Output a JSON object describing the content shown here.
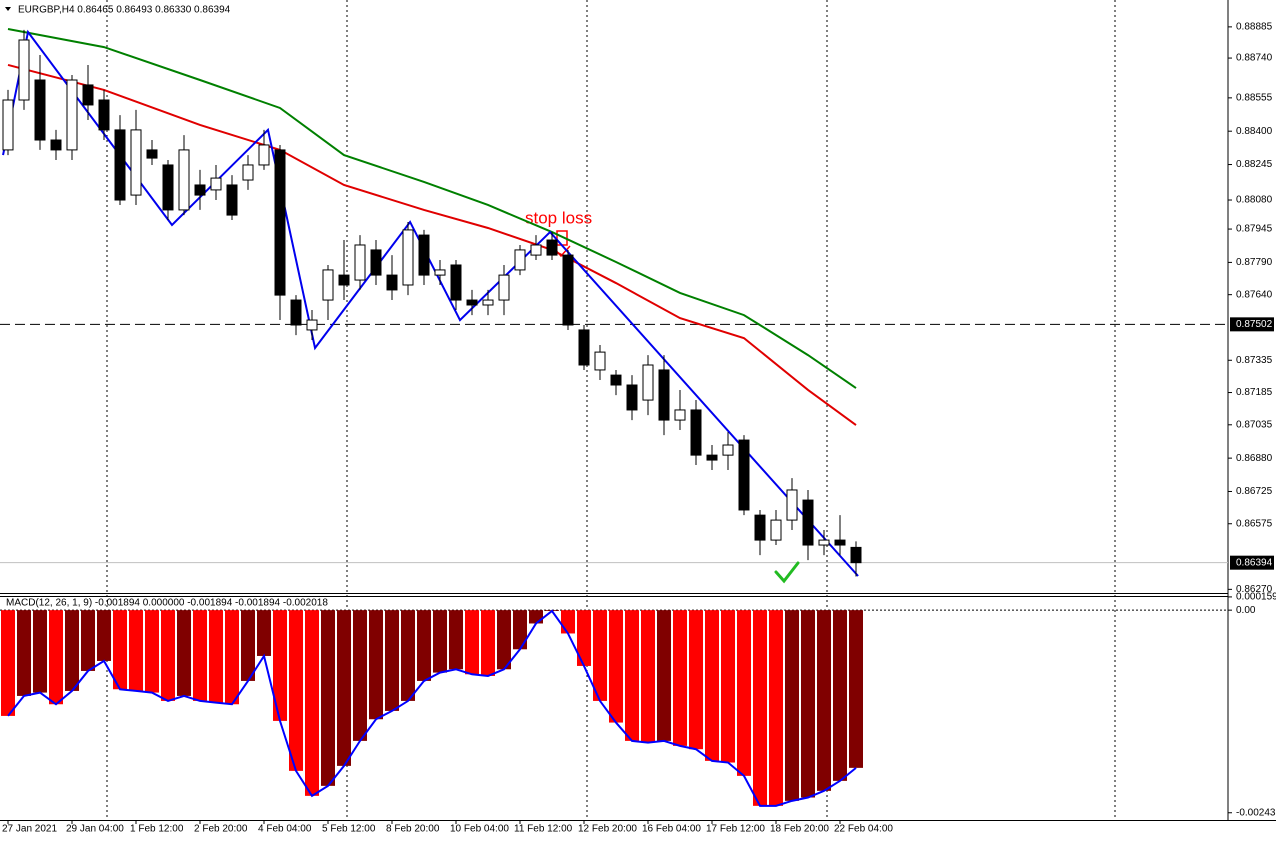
{
  "chart_data": [
    {
      "type": "candlestick",
      "title": "EURGBP,H4  0.86465 0.86493 0.86330 0.86394",
      "annotation": "stop loss",
      "categories": [
        "27 Jan 2021",
        null,
        null,
        null,
        "29 Jan 04:00",
        null,
        null,
        null,
        "1 Feb 12:00",
        null,
        null,
        null,
        "2 Feb 20:00",
        null,
        null,
        null,
        "4 Feb 04:00",
        null,
        null,
        null,
        "5 Feb 12:00",
        null,
        null,
        null,
        "8 Feb 20:00",
        null,
        null,
        null,
        "10 Feb 04:00",
        null,
        null,
        null,
        "11 Feb 12:00",
        null,
        null,
        null,
        "12 Feb 20:00",
        null,
        null,
        null,
        "16 Feb 04:00",
        null,
        null,
        null,
        "17 Feb 12:00",
        null,
        null,
        null,
        "18 Feb 20:00",
        null,
        null,
        null,
        "22 Feb 04:00",
        null
      ],
      "ohlc": [
        [
          0.88313,
          0.88592,
          0.88289,
          0.88545
        ],
        [
          0.88545,
          0.88871,
          0.88499,
          0.88824
        ],
        [
          0.88638,
          0.88754,
          0.88313,
          0.88359
        ],
        [
          0.88359,
          0.88406,
          0.88266,
          0.88313
        ],
        [
          0.88313,
          0.88661,
          0.88266,
          0.88638
        ],
        [
          0.88615,
          0.88708,
          0.88452,
          0.88522
        ],
        [
          0.88545,
          0.88592,
          0.88359,
          0.88406
        ],
        [
          0.88406,
          0.88475,
          0.88057,
          0.8808
        ],
        [
          0.88103,
          0.88499,
          0.88057,
          0.88406
        ],
        [
          0.88313,
          0.88359,
          0.88243,
          0.88275
        ],
        [
          0.88243,
          0.88266,
          0.87987,
          0.88034
        ],
        [
          0.88034,
          0.88382,
          0.8801,
          0.88313
        ],
        [
          0.8815,
          0.8822,
          0.88034,
          0.88103
        ],
        [
          0.88127,
          0.88243,
          0.8808,
          0.88182
        ],
        [
          0.8815,
          0.88196,
          0.87987,
          0.8801
        ],
        [
          0.88173,
          0.88289,
          0.88127,
          0.88243
        ],
        [
          0.88243,
          0.88406,
          0.8822,
          0.88336
        ],
        [
          0.88313,
          0.88336,
          0.87522,
          0.87638
        ],
        [
          0.87615,
          0.87638,
          0.87452,
          0.87499
        ],
        [
          0.87476,
          0.87569,
          0.87429,
          0.87522
        ],
        [
          0.87615,
          0.87778,
          0.87522,
          0.87755
        ],
        [
          0.87731,
          0.87894,
          0.87615,
          0.87685
        ],
        [
          0.87708,
          0.87917,
          0.87662,
          0.87871
        ],
        [
          0.87848,
          0.87894,
          0.87685,
          0.87731
        ],
        [
          0.87731,
          0.87824,
          0.87615,
          0.87662
        ],
        [
          0.87685,
          0.87978,
          0.87638,
          0.87941
        ],
        [
          0.87917,
          0.87941,
          0.87685,
          0.87731
        ],
        [
          0.87731,
          0.87801,
          0.87685,
          0.87755
        ],
        [
          0.87778,
          0.87801,
          0.87569,
          0.87615
        ],
        [
          0.87615,
          0.87662,
          0.87545,
          0.87592
        ],
        [
          0.87592,
          0.87662,
          0.87545,
          0.87615
        ],
        [
          0.87615,
          0.87778,
          0.87545,
          0.87731
        ],
        [
          0.87755,
          0.87871,
          0.87731,
          0.87848
        ],
        [
          0.87824,
          0.87917,
          0.87801,
          0.87871
        ],
        [
          0.87894,
          0.87931,
          0.87801,
          0.87824
        ],
        [
          0.87824,
          0.87848,
          0.87476,
          0.87499
        ],
        [
          0.87476,
          0.87499,
          0.8729,
          0.87313
        ],
        [
          0.8729,
          0.87406,
          0.87243,
          0.87373
        ],
        [
          0.87266,
          0.8729,
          0.87173,
          0.8722
        ],
        [
          0.8722,
          0.87266,
          0.87057,
          0.87104
        ],
        [
          0.8715,
          0.87359,
          0.8708,
          0.87313
        ],
        [
          0.8729,
          0.87359,
          0.86987,
          0.87057
        ],
        [
          0.87057,
          0.87197,
          0.87011,
          0.87104
        ],
        [
          0.87104,
          0.8715,
          0.86848,
          0.86894
        ],
        [
          0.86894,
          0.86941,
          0.86825,
          0.86871
        ],
        [
          0.86894,
          0.87001,
          0.86825,
          0.86941
        ],
        [
          0.86964,
          0.86987,
          0.86615,
          0.86639
        ],
        [
          0.86615,
          0.86639,
          0.86429,
          0.86499
        ],
        [
          0.86499,
          0.86639,
          0.86476,
          0.86592
        ],
        [
          0.86592,
          0.86787,
          0.86546,
          0.86732
        ],
        [
          0.86685,
          0.86732,
          0.86406,
          0.86476
        ],
        [
          0.86476,
          0.86546,
          0.86429,
          0.86499
        ],
        [
          0.86499,
          0.86615,
          0.86429,
          0.86476
        ],
        [
          0.86465,
          0.86493,
          0.8633,
          0.86394
        ]
      ],
      "overlays": [
        {
          "color": "#008000",
          "x": [
            0,
            6,
            12,
            17,
            21,
            26,
            30,
            34,
            38,
            42,
            46,
            50,
            53
          ],
          "values": [
            0.88875,
            0.88791,
            0.88638,
            0.88508,
            0.88289,
            0.88164,
            0.88057,
            0.87931,
            0.87792,
            0.87648,
            0.87545,
            0.87359,
            0.87206
          ]
        },
        {
          "color": "#e00000",
          "x": [
            0,
            6,
            12,
            17,
            21,
            26,
            30,
            34,
            38,
            42,
            46,
            50,
            53
          ],
          "values": [
            0.88708,
            0.88592,
            0.88429,
            0.88313,
            0.8815,
            0.88034,
            0.8795,
            0.87848,
            0.87694,
            0.87531,
            0.87438,
            0.87197,
            0.87034
          ]
        },
        {
          "color": "#0000ee",
          "x": [
            -0.31,
            1.25,
            10.25,
            16.25,
            19.19,
            25.13,
            28.25,
            33.88,
            53.13
          ],
          "values": [
            0.88289,
            0.88861,
            0.87964,
            0.88406,
            0.87392,
            0.87978,
            0.87522,
            0.87931,
            0.86332
          ]
        }
      ],
      "levels": [
        {
          "value": 0.87502,
          "color": "#000000",
          "dashed": true
        },
        {
          "value": 0.86394,
          "color": "#c0c0c0",
          "dashed": false
        }
      ],
      "ylim": [
        0.86253,
        0.88996
      ],
      "yticks": [
        0.88885,
        {
          "value": 0.8874,
          "label": "0.88740"
        },
        0.88555,
        {
          "value": 0.884,
          "label": "0.88400"
        },
        0.88245,
        {
          "value": 0.8808,
          "label": "0.88080"
        },
        0.87945,
        {
          "value": 0.8779,
          "label": "0.87790"
        },
        {
          "value": 0.8764,
          "label": "0.87640"
        },
        0.87335,
        0.87185,
        0.87035,
        {
          "value": 0.8688,
          "label": "0.86880"
        },
        0.86725,
        0.86575,
        {
          "value": 0.8627,
          "label": "0.86270"
        }
      ]
    },
    {
      "type": "bar",
      "title": "MACD(12, 26, 1, 9) -0.001894 0.000000 -0.001894 -0.001894 -0.002018",
      "values": [
        -0.00127,
        -0.00103,
        -0.00099,
        -0.00113,
        -0.00097,
        -0.00073,
        -0.00061,
        -0.00095,
        -0.00097,
        -0.00099,
        -0.00109,
        -0.00103,
        -0.00109,
        -0.00111,
        -0.00113,
        -0.00085,
        -0.00055,
        -0.00133,
        -0.00193,
        -0.00223,
        -0.00211,
        -0.00187,
        -0.00157,
        -0.00131,
        -0.00121,
        -0.00109,
        -0.00085,
        -0.00075,
        -0.00071,
        -0.00077,
        -0.00079,
        -0.00071,
        -0.00047,
        -0.00016,
        -1e-05,
        -0.00028,
        -0.00067,
        -0.00109,
        -0.00135,
        -0.00157,
        -0.00159,
        -0.00157,
        -0.00163,
        -0.00167,
        -0.00181,
        -0.00183,
        -0.00199,
        -0.00235,
        -0.00235,
        -0.00229,
        -0.00225,
        -0.00217,
        -0.00205,
        -0.001894
      ],
      "rising_color": "#800000",
      "falling_color": "#ff0000",
      "signal_color": "#0000ff",
      "ylim": [
        -0.00252,
        0.00017
      ],
      "yticks": [
        0.000159,
        {
          "value": 0,
          "label": "0.00"
        },
        -0.002433
      ]
    }
  ]
}
